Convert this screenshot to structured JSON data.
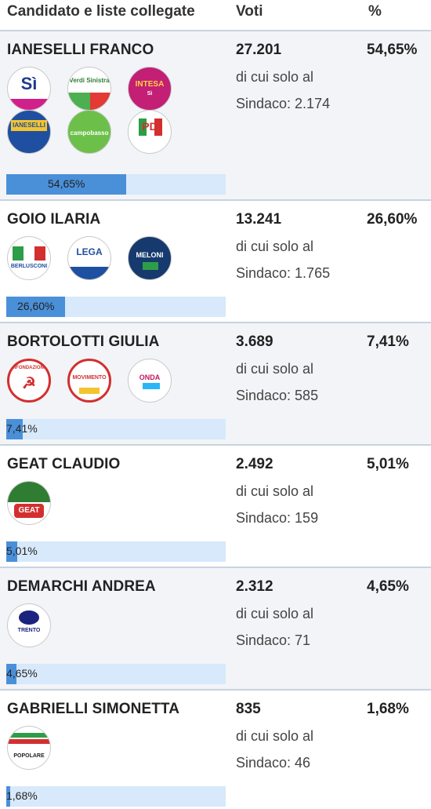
{
  "header": {
    "candidate": "Candidato e liste collegate",
    "votes": "Voti",
    "percent": "%"
  },
  "subtext_line1": "di cui solo al",
  "candidates": [
    {
      "name": "IANESELLI FRANCO",
      "votes": "27.201",
      "sindaco": "Sindaco: 2.174",
      "percent": "54,65%",
      "bar_label": "54,65%",
      "bar_fraction": 0.5465,
      "logos": [
        "si-logo",
        "europa-verde-logo",
        "intesa-ianeselli-logo",
        "ianeselli-insieme-trento-logo",
        "campobasso-logo",
        "pd-logo"
      ],
      "logo_texts": [
        "Sì",
        "Verdi Sinistra",
        "INTESA",
        "IANESELLI",
        "campobasso",
        "PD"
      ]
    },
    {
      "name": "GOIO ILARIA",
      "votes": "13.241",
      "sindaco": "Sindaco: 1.765",
      "percent": "26,60%",
      "bar_label": "26,60%",
      "bar_fraction": 0.266,
      "logos": [
        "forza-italia-logo",
        "lega-salvini-logo",
        "fratelli-italia-meloni-logo"
      ],
      "logo_texts": [
        "BERLUSCONI",
        "LEGA",
        "MELONI"
      ]
    },
    {
      "name": "BORTOLOTTI GIULIA",
      "votes": "3.689",
      "sindaco": "Sindaco: 585",
      "percent": "7,41%",
      "bar_label": "7,41%",
      "bar_fraction": 0.0741,
      "logos": [
        "rifondazione-comunista-logo",
        "movimento-2050-logo",
        "onda-logo"
      ],
      "logo_texts": [
        "RIFONDAZIONE",
        "MOVIMENTO",
        "ONDA"
      ]
    },
    {
      "name": "GEAT CLAUDIO",
      "votes": "2.492",
      "sindaco": "Sindaco: 159",
      "percent": "5,01%",
      "bar_label": "5,01%",
      "bar_fraction": 0.0501,
      "logos": [
        "generazione-geat-logo"
      ],
      "logo_texts": [
        "GEAT"
      ]
    },
    {
      "name": "DEMARCHI ANDREA",
      "votes": "2.312",
      "sindaco": "Sindaco: 71",
      "percent": "4,65%",
      "bar_label": "4,65%",
      "bar_fraction": 0.0465,
      "logos": [
        "demarchi-civic-list-logo"
      ],
      "logo_texts": [
        "TRENTO"
      ]
    },
    {
      "name": "GABRIELLI SIMONETTA",
      "votes": "835",
      "sindaco": "Sindaco: 46",
      "percent": "1,68%",
      "bar_label": "1,68%",
      "bar_fraction": 0.0168,
      "logos": [
        "democrazia-sovrana-popolare-logo"
      ],
      "logo_texts": [
        "POPOLARE"
      ]
    }
  ],
  "colors": {
    "bar_fill": "#4a90d9",
    "bar_bg": "#d7e9fb",
    "separator": "#c8d3e0"
  }
}
